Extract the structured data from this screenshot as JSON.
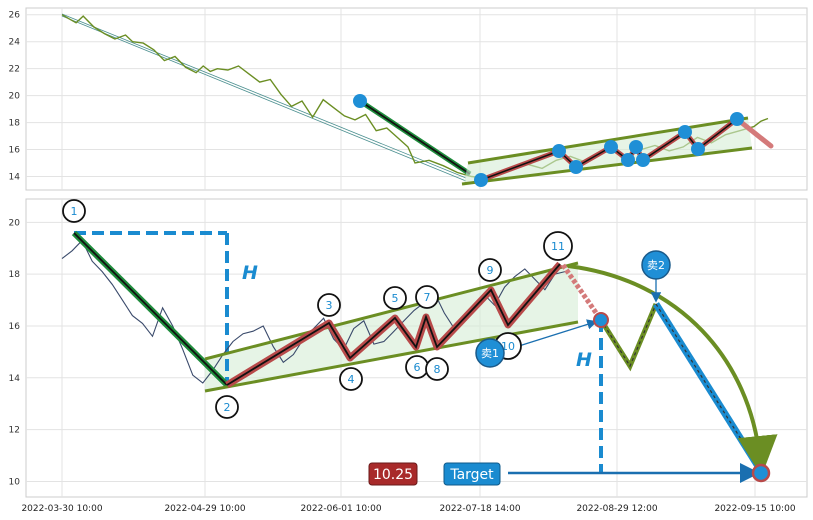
{
  "chart_data": [
    {
      "type": "line",
      "panel": "top",
      "ylim": [
        13,
        26.5
      ],
      "yticks": [
        "14",
        "16",
        "18",
        "20",
        "22",
        "24",
        "26"
      ],
      "grid": true,
      "series": [
        {
          "role": "price",
          "color": "#6b8e23",
          "x": [
            0.0,
            0.01,
            0.02,
            0.03,
            0.045,
            0.06,
            0.075,
            0.09,
            0.1,
            0.115,
            0.13,
            0.145,
            0.16,
            0.175,
            0.19,
            0.2,
            0.21,
            0.22,
            0.235,
            0.25,
            0.265,
            0.28,
            0.295,
            0.31,
            0.325,
            0.34,
            0.355,
            0.37,
            0.385,
            0.4,
            0.415,
            0.43,
            0.445,
            0.46,
            0.475,
            0.49,
            0.5,
            0.52,
            0.54,
            0.56,
            0.58,
            0.6,
            0.62,
            0.64,
            0.66,
            0.68,
            0.7,
            0.72,
            0.74,
            0.76,
            0.78,
            0.8,
            0.82,
            0.84,
            0.86,
            0.88,
            0.9,
            0.92,
            0.94,
            0.96,
            0.98,
            0.99,
            1.0
          ],
          "y": [
            26,
            25.7,
            25.4,
            25.9,
            25.1,
            24.6,
            24.2,
            24.5,
            24.0,
            23.9,
            23.4,
            22.6,
            22.9,
            22.1,
            21.7,
            22.2,
            21.8,
            22.0,
            21.9,
            22.2,
            21.6,
            21.0,
            21.2,
            20.1,
            19.2,
            19.6,
            18.4,
            19.7,
            19.1,
            18.5,
            18.2,
            18.6,
            17.4,
            17.6,
            16.9,
            16.2,
            15.0,
            15.2,
            14.8,
            14.3,
            14.0,
            13.9,
            14.2,
            14.6,
            14.9,
            14.6,
            15.2,
            15.5,
            15.1,
            15.7,
            15.9,
            15.4,
            16.0,
            16.3,
            15.9,
            16.2,
            16.9,
            16.5,
            17.1,
            17.4,
            17.7,
            18.1,
            18.3
          ]
        }
      ]
    },
    {
      "type": "line",
      "panel": "bottom",
      "ylim": [
        9.4,
        20.9
      ],
      "yticks": [
        "10",
        "12",
        "14",
        "16",
        "18",
        "20"
      ],
      "xticks": [
        "2022-03-30 10:00",
        "2022-04-29 10:00",
        "2022-06-01 10:00",
        "2022-07-18 14:00",
        "2022-08-29 12:00",
        "2022-09-15 10:00"
      ],
      "grid": true,
      "series": [
        {
          "role": "price",
          "color": "#3a4a6b",
          "x": [
            0.0,
            0.02,
            0.04,
            0.06,
            0.08,
            0.1,
            0.12,
            0.14,
            0.16,
            0.18,
            0.2,
            0.22,
            0.24,
            0.26,
            0.28,
            0.3,
            0.32,
            0.34,
            0.36,
            0.38,
            0.4,
            0.42,
            0.44,
            0.46,
            0.48,
            0.5,
            0.52,
            0.54,
            0.56,
            0.58,
            0.6,
            0.62,
            0.64,
            0.66,
            0.68,
            0.7,
            0.72,
            0.74,
            0.76,
            0.78,
            0.8,
            0.82,
            0.84,
            0.86,
            0.88,
            0.9,
            0.92,
            0.94,
            0.96,
            0.98,
            1.0
          ],
          "y": [
            18.6,
            18.9,
            19.3,
            18.5,
            18.1,
            17.6,
            17.0,
            16.4,
            16.1,
            15.6,
            16.7,
            16.0,
            15.1,
            14.1,
            13.8,
            14.3,
            14.9,
            15.4,
            15.7,
            15.8,
            16.0,
            15.2,
            14.6,
            14.9,
            15.5,
            15.9,
            16.3,
            15.5,
            15.1,
            15.9,
            16.2,
            15.3,
            15.4,
            15.8,
            16.2,
            16.6,
            16.9,
            17.3,
            16.5,
            15.9,
            16.2,
            16.7,
            17.2,
            16.8,
            17.5,
            17.9,
            18.2,
            17.8,
            17.4,
            18.0,
            18.1
          ]
        }
      ],
      "annotations": {
        "points": [
          "1",
          "2",
          "3",
          "4",
          "5",
          "6",
          "7",
          "8",
          "9",
          "10",
          "11"
        ],
        "sell_labels": [
          "卖1",
          "卖2"
        ],
        "height_label": "H",
        "price_badge": "10.25",
        "target_badge": "Target",
        "target_value": 10.25
      }
    }
  ],
  "colors": {
    "price_top": "#6b8e23",
    "price_bottom": "#3a4a6b",
    "decline": "#1e8c3c",
    "wave": "#b84a4a",
    "trend": "#6b8e23",
    "accent": "#1a8bd0",
    "badge_red": "#a82a2a",
    "badge_blue": "#1a8bd0"
  }
}
